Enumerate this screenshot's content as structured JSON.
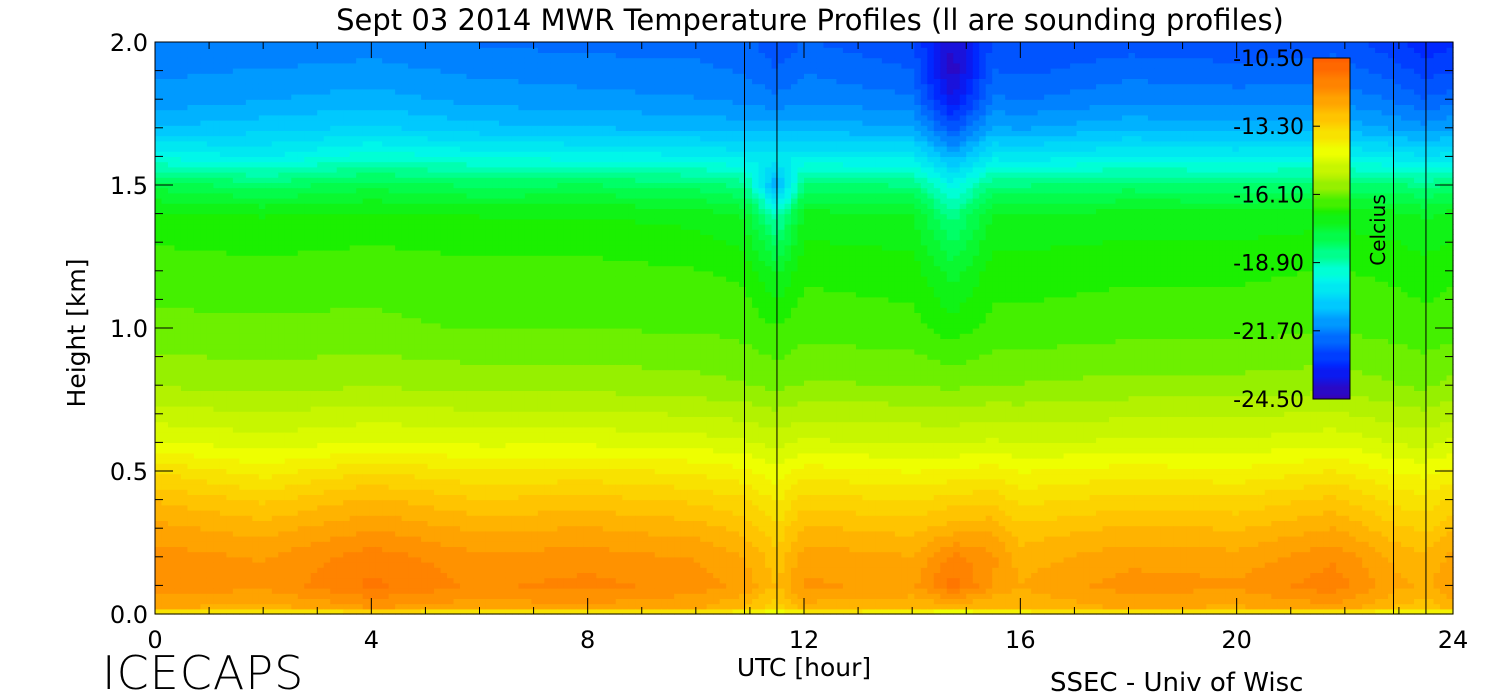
{
  "chart_data": {
    "type": "heatmap",
    "title": "Sept 03 2014 MWR Temperature Profiles (ll are sounding profiles)",
    "xlabel": "UTC [hour]",
    "ylabel": "Height [km]",
    "xlim": [
      0,
      24
    ],
    "ylim": [
      0,
      2.0
    ],
    "x_ticks": [
      0,
      4,
      8,
      12,
      16,
      20,
      24
    ],
    "x_tick_labels": [
      "0",
      "4",
      "8",
      "12",
      "16",
      "20",
      "24"
    ],
    "y_ticks": [
      0.0,
      0.5,
      1.0,
      1.5,
      2.0
    ],
    "y_tick_labels": [
      "0.0",
      "0.5",
      "1.0",
      "1.5",
      "2.0"
    ],
    "colorbar": {
      "label": "Celcius",
      "range": [
        -24.5,
        -10.5
      ],
      "tick_labels": [
        "-10.50",
        "-13.30",
        "-16.10",
        "-18.90",
        "-21.70",
        "-24.50"
      ],
      "colormap": [
        "#3a00b0",
        "#0020ff",
        "#0070ff",
        "#00c8ff",
        "#00ffe6",
        "#00ff60",
        "#14f000",
        "#a8f000",
        "#f0ff00",
        "#ffc800",
        "#ff8c00",
        "#ff5a00"
      ]
    },
    "sounding_profile_times": [
      10.9,
      11.5,
      22.9,
      23.5
    ],
    "height_km": [
      0.0,
      0.02,
      0.1,
      0.2,
      0.3,
      0.4,
      0.5,
      0.6,
      0.8,
      1.0,
      1.2,
      1.4,
      1.5,
      1.6,
      1.7,
      1.8,
      1.9,
      2.0
    ],
    "profiles": [
      {
        "time": 0.0,
        "temps": [
          -14.5,
          -12.4,
          -11.8,
          -11.9,
          -12.3,
          -12.8,
          -13.5,
          -14.5,
          -15.6,
          -16.2,
          -16.4,
          -16.9,
          -17.8,
          -19.5,
          -20.8,
          -21.4,
          -21.6,
          -21.8
        ]
      },
      {
        "time": 2.0,
        "temps": [
          -14.6,
          -12.6,
          -12.0,
          -12.1,
          -12.6,
          -13.2,
          -14.0,
          -14.7,
          -15.7,
          -16.2,
          -16.5,
          -17.0,
          -18.2,
          -19.8,
          -20.6,
          -21.2,
          -21.5,
          -21.8
        ]
      },
      {
        "time": 4.0,
        "temps": [
          -14.5,
          -12.1,
          -11.3,
          -11.5,
          -12.1,
          -12.7,
          -13.5,
          -14.5,
          -15.6,
          -16.2,
          -16.4,
          -16.9,
          -17.8,
          -19.2,
          -20.4,
          -21.0,
          -21.4,
          -21.7
        ]
      },
      {
        "time": 6.0,
        "temps": [
          -14.6,
          -12.3,
          -11.8,
          -12.0,
          -12.5,
          -13.1,
          -13.8,
          -14.6,
          -15.7,
          -16.3,
          -16.5,
          -17.0,
          -18.1,
          -19.5,
          -20.7,
          -21.3,
          -21.6,
          -21.9
        ]
      },
      {
        "time": 8.0,
        "temps": [
          -14.6,
          -12.2,
          -11.6,
          -11.9,
          -12.4,
          -13.0,
          -13.7,
          -14.6,
          -15.7,
          -16.3,
          -16.5,
          -17.0,
          -18.0,
          -19.6,
          -20.8,
          -21.4,
          -21.7,
          -22.0
        ]
      },
      {
        "time": 10.0,
        "temps": [
          -14.7,
          -12.4,
          -11.9,
          -12.1,
          -12.6,
          -13.2,
          -13.9,
          -14.7,
          -15.8,
          -16.3,
          -16.6,
          -17.1,
          -18.2,
          -19.7,
          -20.9,
          -21.5,
          -21.8,
          -22.0
        ]
      },
      {
        "time": 10.9,
        "temps": [
          -14.8,
          -12.8,
          -12.2,
          -12.4,
          -12.9,
          -13.4,
          -14.1,
          -14.8,
          -15.9,
          -16.4,
          -16.7,
          -17.4,
          -18.5,
          -19.9,
          -21.0,
          -21.6,
          -21.9,
          -22.1
        ]
      },
      {
        "time": 11.5,
        "temps": [
          -15.2,
          -13.4,
          -12.8,
          -13.0,
          -13.4,
          -13.9,
          -14.4,
          -15.0,
          -16.0,
          -16.6,
          -17.4,
          -19.0,
          -21.3,
          -19.8,
          -21.0,
          -21.8,
          -22.2,
          -22.5
        ]
      },
      {
        "time": 12.0,
        "temps": [
          -14.8,
          -12.6,
          -12.0,
          -12.2,
          -12.7,
          -13.3,
          -14.0,
          -14.8,
          -15.9,
          -16.4,
          -16.7,
          -17.2,
          -18.3,
          -19.8,
          -21.0,
          -21.6,
          -21.9,
          -22.2
        ]
      },
      {
        "time": 14.0,
        "temps": [
          -14.8,
          -12.7,
          -12.2,
          -12.4,
          -12.9,
          -13.5,
          -14.2,
          -14.9,
          -15.9,
          -16.5,
          -16.8,
          -17.3,
          -18.4,
          -19.9,
          -21.1,
          -21.8,
          -22.2,
          -22.5
        ]
      },
      {
        "time": 14.75,
        "temps": [
          -16.0,
          -12.8,
          -11.2,
          -11.6,
          -12.6,
          -13.3,
          -14.1,
          -14.9,
          -16.0,
          -16.8,
          -17.5,
          -18.6,
          -19.6,
          -21.0,
          -22.4,
          -23.6,
          -24.2,
          -24.0
        ]
      },
      {
        "time": 15.5,
        "temps": [
          -14.8,
          -12.8,
          -12.1,
          -12.0,
          -12.5,
          -13.2,
          -14.0,
          -14.8,
          -15.9,
          -16.5,
          -16.8,
          -17.3,
          -18.4,
          -19.9,
          -21.1,
          -21.8,
          -22.2,
          -22.5
        ]
      },
      {
        "time": 16.0,
        "temps": [
          -14.8,
          -12.7,
          -12.4,
          -12.6,
          -13.0,
          -13.6,
          -14.2,
          -14.9,
          -15.9,
          -16.5,
          -16.8,
          -17.3,
          -18.4,
          -20.0,
          -21.2,
          -21.9,
          -22.3,
          -22.6
        ]
      },
      {
        "time": 18.0,
        "temps": [
          -14.7,
          -12.4,
          -11.9,
          -12.2,
          -12.7,
          -13.3,
          -14.0,
          -14.8,
          -15.8,
          -16.4,
          -16.7,
          -17.2,
          -18.2,
          -19.7,
          -20.9,
          -21.6,
          -22.0,
          -22.4
        ]
      },
      {
        "time": 20.0,
        "temps": [
          -14.7,
          -12.5,
          -12.0,
          -12.3,
          -12.8,
          -13.4,
          -14.1,
          -14.8,
          -15.8,
          -16.4,
          -16.7,
          -17.2,
          -18.3,
          -19.8,
          -21.0,
          -21.7,
          -22.1,
          -22.5
        ]
      },
      {
        "time": 21.8,
        "temps": [
          -14.6,
          -12.2,
          -11.5,
          -11.8,
          -12.4,
          -13.0,
          -13.8,
          -14.6,
          -15.7,
          -16.3,
          -16.6,
          -17.1,
          -18.2,
          -19.7,
          -20.9,
          -21.6,
          -22.0,
          -22.4
        ]
      },
      {
        "time": 22.9,
        "temps": [
          -14.9,
          -12.8,
          -12.3,
          -12.5,
          -13.0,
          -13.6,
          -14.2,
          -14.9,
          -15.9,
          -16.4,
          -16.7,
          -17.2,
          -18.3,
          -19.9,
          -21.2,
          -21.9,
          -22.4,
          -22.8
        ]
      },
      {
        "time": 23.5,
        "temps": [
          -15.0,
          -13.0,
          -12.5,
          -12.7,
          -13.2,
          -13.7,
          -14.3,
          -15.0,
          -16.0,
          -16.5,
          -16.8,
          -17.4,
          -18.5,
          -20.1,
          -21.4,
          -22.2,
          -22.7,
          -23.2
        ]
      },
      {
        "time": 24.0,
        "temps": [
          -14.8,
          -12.6,
          -12.1,
          -12.3,
          -12.8,
          -13.4,
          -14.1,
          -14.8,
          -15.8,
          -16.4,
          -16.7,
          -17.2,
          -18.3,
          -19.9,
          -21.2,
          -22.0,
          -22.6,
          -23.0
        ]
      }
    ]
  },
  "footer": {
    "logo_text": "ICECAPS",
    "credit": "SSEC - Univ of Wisc"
  }
}
